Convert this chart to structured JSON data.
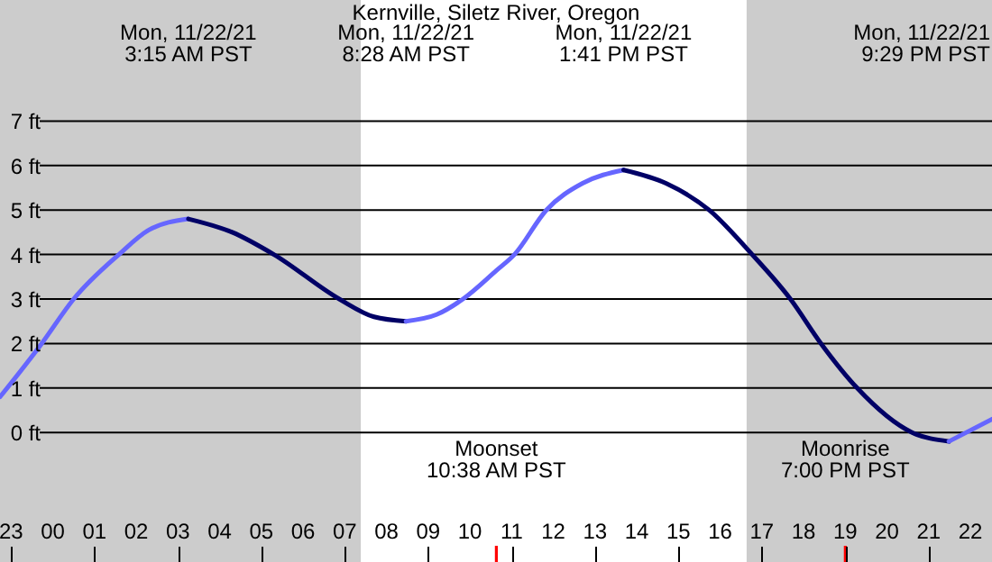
{
  "chart_data": {
    "type": "line",
    "title": "Kernville, Siletz River, Oregon",
    "xlim": [
      "--11-21T22:44",
      "--11-22T22:31"
    ],
    "ylim": [
      -2.91,
      9.72
    ],
    "xticks": [
      {
        "value": "--11-21T23:00",
        "label": "23"
      },
      {
        "value": "--11-22T00:00",
        "label": "00"
      },
      {
        "value": "--11-22T01:00",
        "label": "01"
      },
      {
        "value": "--11-22T02:00",
        "label": "02"
      },
      {
        "value": "--11-22T03:00",
        "label": "03"
      },
      {
        "value": "--11-22T04:00",
        "label": "04"
      },
      {
        "value": "--11-22T05:00",
        "label": "05"
      },
      {
        "value": "--11-22T06:00",
        "label": "06"
      },
      {
        "value": "--11-22T07:00",
        "label": "07"
      },
      {
        "value": "--11-22T08:00",
        "label": "08"
      },
      {
        "value": "--11-22T09:00",
        "label": "09"
      },
      {
        "value": "--11-22T10:00",
        "label": "10"
      },
      {
        "value": "--11-22T10:38",
        "label": null
      },
      {
        "value": "--11-22T11:00",
        "label": "11"
      },
      {
        "value": "--11-22T12:00",
        "label": "12"
      },
      {
        "value": "--11-22T13:00",
        "label": "13"
      },
      {
        "value": "--11-22T14:00",
        "label": "14"
      },
      {
        "value": "--11-22T15:00",
        "label": "15"
      },
      {
        "value": "--11-22T16:00",
        "label": "16"
      },
      {
        "value": "--11-22T17:00",
        "label": "17"
      },
      {
        "value": "--11-22T18:00",
        "label": "18"
      },
      {
        "value": "--11-22T19:00",
        "label": "19"
      },
      {
        "value": "--11-22T19:00",
        "label": null
      },
      {
        "value": "--11-22T20:00",
        "label": "20"
      },
      {
        "value": "--11-22T21:00",
        "label": "21"
      },
      {
        "value": "--11-22T22:00",
        "label": "22"
      }
    ],
    "yticks": [
      {
        "value": 0,
        "label": "0 ft"
      },
      {
        "value": 1,
        "label": "1 ft"
      },
      {
        "value": 2,
        "label": "2 ft"
      },
      {
        "value": 3,
        "label": "3 ft"
      },
      {
        "value": 4,
        "label": "4 ft"
      },
      {
        "value": 5,
        "label": "5 ft"
      },
      {
        "value": 6,
        "label": "6 ft"
      },
      {
        "value": 7,
        "label": "7 ft"
      }
    ],
    "grid": "y",
    "bands": [
      {
        "axis": "x",
        "from": "--11-21T22:44",
        "to": "--11-22T07:23",
        "color": "#cccccc"
      },
      {
        "axis": "x",
        "from": "--11-22T16:38",
        "to": "--11-22T22:31",
        "color": "#cccccc"
      }
    ],
    "series": [
      {
        "color": "#6666ff",
        "x": [
          "--11-21T22:44",
          "--11-21T23:44",
          "--11-22T00:30",
          "--11-22T01:35",
          "--11-22T02:18",
          "--11-22T03:15"
        ],
        "values": [
          0.8,
          2,
          3,
          4,
          4.55,
          4.8
        ]
      },
      {
        "color": "#000066",
        "x": [
          "--11-22T03:15",
          "--11-22T04:18",
          "--11-22T05:18",
          "--11-22T06:52",
          "--11-22T07:42",
          "--11-22T08:28"
        ],
        "values": [
          4.8,
          4.5,
          4,
          3,
          2.6,
          2.5
        ]
      },
      {
        "color": "#6666ff",
        "x": [
          "--11-22T08:28",
          "--11-22T09:12",
          "--11-22T09:50",
          "--11-22T10:38",
          "--11-22T11:04",
          "--11-22T11:50",
          "--11-22T12:42",
          "--11-22T13:41"
        ],
        "values": [
          2.5,
          2.65,
          3,
          3.64,
          4,
          5,
          5.6,
          5.9
        ]
      },
      {
        "color": "#000066",
        "x": [
          "--11-22T13:41",
          "--11-22T14:42",
          "--11-22T15:44",
          "--11-22T16:46",
          "--11-22T17:41",
          "--11-22T18:25",
          "--11-22T19:17",
          "--11-22T20:36",
          "--11-22T21:29"
        ],
        "values": [
          5.9,
          5.6,
          5,
          4,
          3,
          2,
          1,
          0,
          -0.2
        ]
      },
      {
        "color": "#6666ff",
        "x": [
          "--11-22T21:29",
          "--11-22T22:31"
        ],
        "values": [
          -0.2,
          0.3
        ]
      }
    ],
    "annotations": [
      "Mon, 11/22/21\n3:15 AM PST",
      "Mon, 11/22/21\n8:28 AM PST",
      "Mon, 11/22/21\n1:41 PM PST",
      "Mon, 11/22/21\n9:29 PM PST",
      "Moonset\n10:38 AM PST",
      "Moonrise\n7:00 PM PST"
    ]
  }
}
